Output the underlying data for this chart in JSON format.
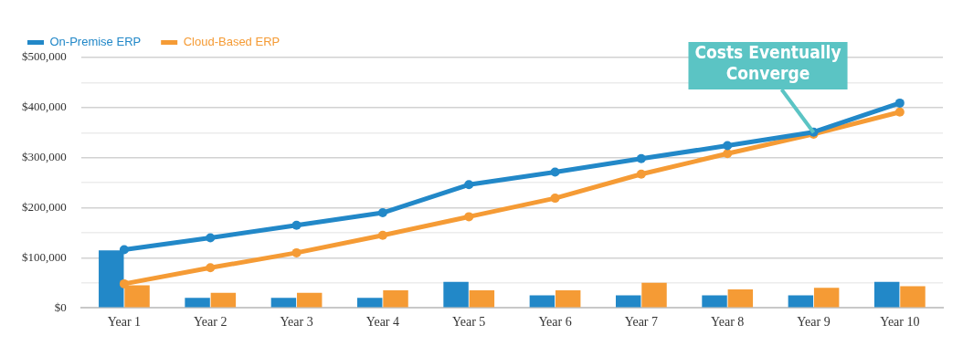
{
  "chart_data": {
    "type": "bar",
    "categories": [
      "Year 1",
      "Year 2",
      "Year 3",
      "Year 4",
      "Year 5",
      "Year 6",
      "Year 7",
      "Year 8",
      "Year 9",
      "Year 10"
    ],
    "series": [
      {
        "color": "#2288c8",
        "values": [
          115000,
          20000,
          20000,
          20000,
          52000,
          25000,
          25000,
          25000,
          25000,
          52000
        ]
      },
      {
        "color": "#f59b35",
        "values": [
          45000,
          30000,
          30000,
          35000,
          35000,
          35000,
          50000,
          37000,
          40000,
          43000
        ]
      },
      {
        "type": "line",
        "name": "On-Premise ERP",
        "color": "#2288c8",
        "values": [
          116000,
          140000,
          165000,
          190000,
          246000,
          271000,
          298000,
          324000,
          351000,
          409000
        ]
      },
      {
        "type": "line",
        "name": "Cloud-Based ERP",
        "color": "#f59b35",
        "values": [
          48000,
          80000,
          110000,
          145000,
          182000,
          219000,
          267000,
          308000,
          347000,
          391000
        ]
      }
    ],
    "ylim": [
      0,
      500000
    ],
    "yticks": [
      {
        "value": 0,
        "label": "$0"
      },
      {
        "value": 50000,
        "label": null
      },
      {
        "value": 100000,
        "label": "$100,000"
      },
      {
        "value": 150000,
        "label": null
      },
      {
        "value": 200000,
        "label": "$200,000"
      },
      {
        "value": 250000,
        "label": null
      },
      {
        "value": 300000,
        "label": "$300,000"
      },
      {
        "value": 350000,
        "label": null
      },
      {
        "value": 400000,
        "label": "$400,000"
      },
      {
        "value": 450000,
        "label": null
      },
      {
        "value": 500000,
        "label": "$500,000"
      }
    ],
    "grid": "y",
    "legend": "top left",
    "marker": "circle",
    "annotations": [
      {
        "text": "Costs Eventually Converge",
        "x": "Year 9",
        "y": 350000
      }
    ]
  }
}
